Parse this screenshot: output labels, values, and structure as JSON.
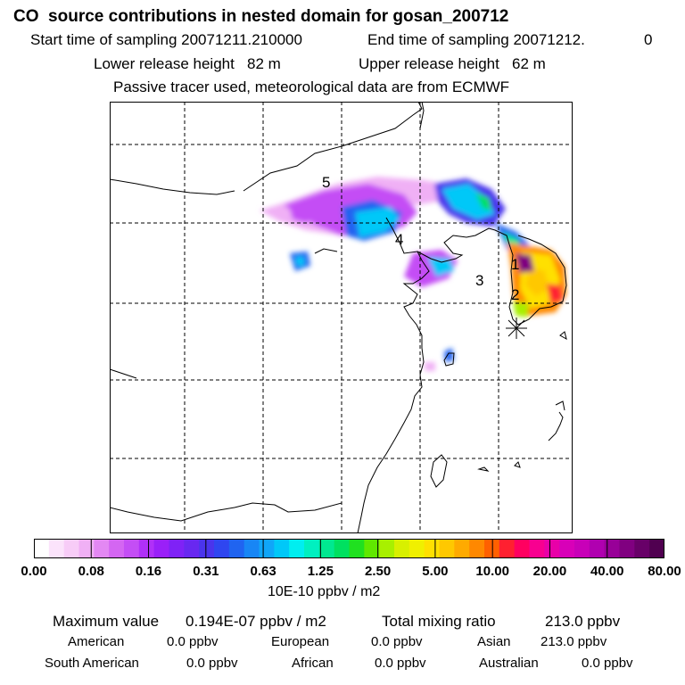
{
  "header": {
    "title": "CO  source contributions in nested domain for gosan_200712",
    "start_label": "Start time of sampling 20071211.210000",
    "end_label": "End time of sampling 20071212.",
    "end_suffix": "0",
    "lower_label": "Lower release height   82 m",
    "upper_label": "Upper release height   62 m",
    "tracer_note": "Passive tracer used, meteorological data are from ECMWF"
  },
  "map": {
    "region_labels": [
      "1",
      "2",
      "3",
      "4",
      "5"
    ],
    "receptor_marker": "star-icon"
  },
  "colorbar": {
    "unit": "10E-10 ppbv / m2",
    "ticks": [
      "0.00",
      "0.08",
      "0.16",
      "0.31",
      "0.63",
      "1.25",
      "2.50",
      "5.00",
      "10.00",
      "20.00",
      "40.00",
      "80.00"
    ],
    "colors": [
      "#ffffff",
      "#fbe3fb",
      "#f7ccf7",
      "#f0b0f5",
      "#e388f3",
      "#d466f2",
      "#c44ef5",
      "#b030f8",
      "#9a20f8",
      "#7f22f6",
      "#6828f0",
      "#4a34ec",
      "#2f46f0",
      "#2064f0",
      "#1886f5",
      "#10a6f8",
      "#00c8f8",
      "#00eef0",
      "#00f0c0",
      "#00e890",
      "#00e060",
      "#20e020",
      "#60e800",
      "#a8f000",
      "#d8f000",
      "#f0f000",
      "#ffe000",
      "#ffc800",
      "#ffaa00",
      "#ff8800",
      "#ff6000",
      "#ff2030",
      "#ff0060",
      "#f80090",
      "#e800a8",
      "#d800b8",
      "#c800b8",
      "#b000b0",
      "#980098",
      "#800080",
      "#680068",
      "#500050"
    ]
  },
  "stats": {
    "max_label": "Maximum value",
    "max_value": "0.194E-07 ppbv / m2",
    "total_label": "Total mixing ratio",
    "total_value": "213.0 ppbv",
    "sources": [
      {
        "name": "American",
        "value": "0.0 ppbv"
      },
      {
        "name": "European",
        "value": "0.0 ppbv"
      },
      {
        "name": "Asian",
        "value": "213.0 ppbv"
      },
      {
        "name": "South American",
        "value": "0.0 ppbv"
      },
      {
        "name": "African",
        "value": "0.0 ppbv"
      },
      {
        "name": "Australian",
        "value": "0.0 ppbv"
      }
    ]
  }
}
